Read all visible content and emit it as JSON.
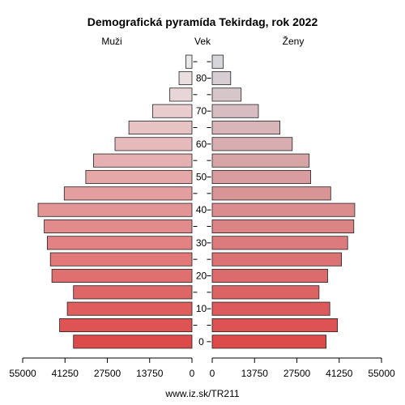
{
  "chart_data": {
    "type": "bar",
    "title": "Demografická pyramída Tekirdag, rok 2022",
    "left_label": "Muži",
    "center_label": "Vek",
    "right_label": "Ženy",
    "footer": "www.iz.sk/TR211",
    "x_max": 55000,
    "x_ticks_left": [
      "55000",
      "41250",
      "27500",
      "13750",
      "0"
    ],
    "x_ticks_right": [
      "0",
      "13750",
      "27500",
      "41250",
      "55000"
    ],
    "x_tick_values": [
      55000,
      41250,
      27500,
      13750,
      0
    ],
    "age_ticks": [
      0,
      10,
      20,
      30,
      40,
      50,
      60,
      70,
      80
    ],
    "age_groups": [
      "0-4",
      "5-9",
      "10-14",
      "15-19",
      "20-24",
      "25-29",
      "30-34",
      "35-39",
      "40-44",
      "45-49",
      "50-54",
      "55-59",
      "60-64",
      "65-69",
      "70-74",
      "75-79",
      "80-84",
      "85+"
    ],
    "series": [
      {
        "name": "Muži",
        "values": [
          38500,
          43000,
          40500,
          38500,
          45500,
          46000,
          47000,
          48000,
          50000,
          41500,
          34500,
          32000,
          25000,
          20500,
          12800,
          7200,
          4200,
          2000
        ]
      },
      {
        "name": "Ženy",
        "values": [
          37000,
          40700,
          38200,
          34700,
          37500,
          42000,
          44000,
          46000,
          46300,
          38500,
          32000,
          31500,
          26000,
          22000,
          15000,
          9400,
          6000,
          3600
        ]
      }
    ]
  }
}
